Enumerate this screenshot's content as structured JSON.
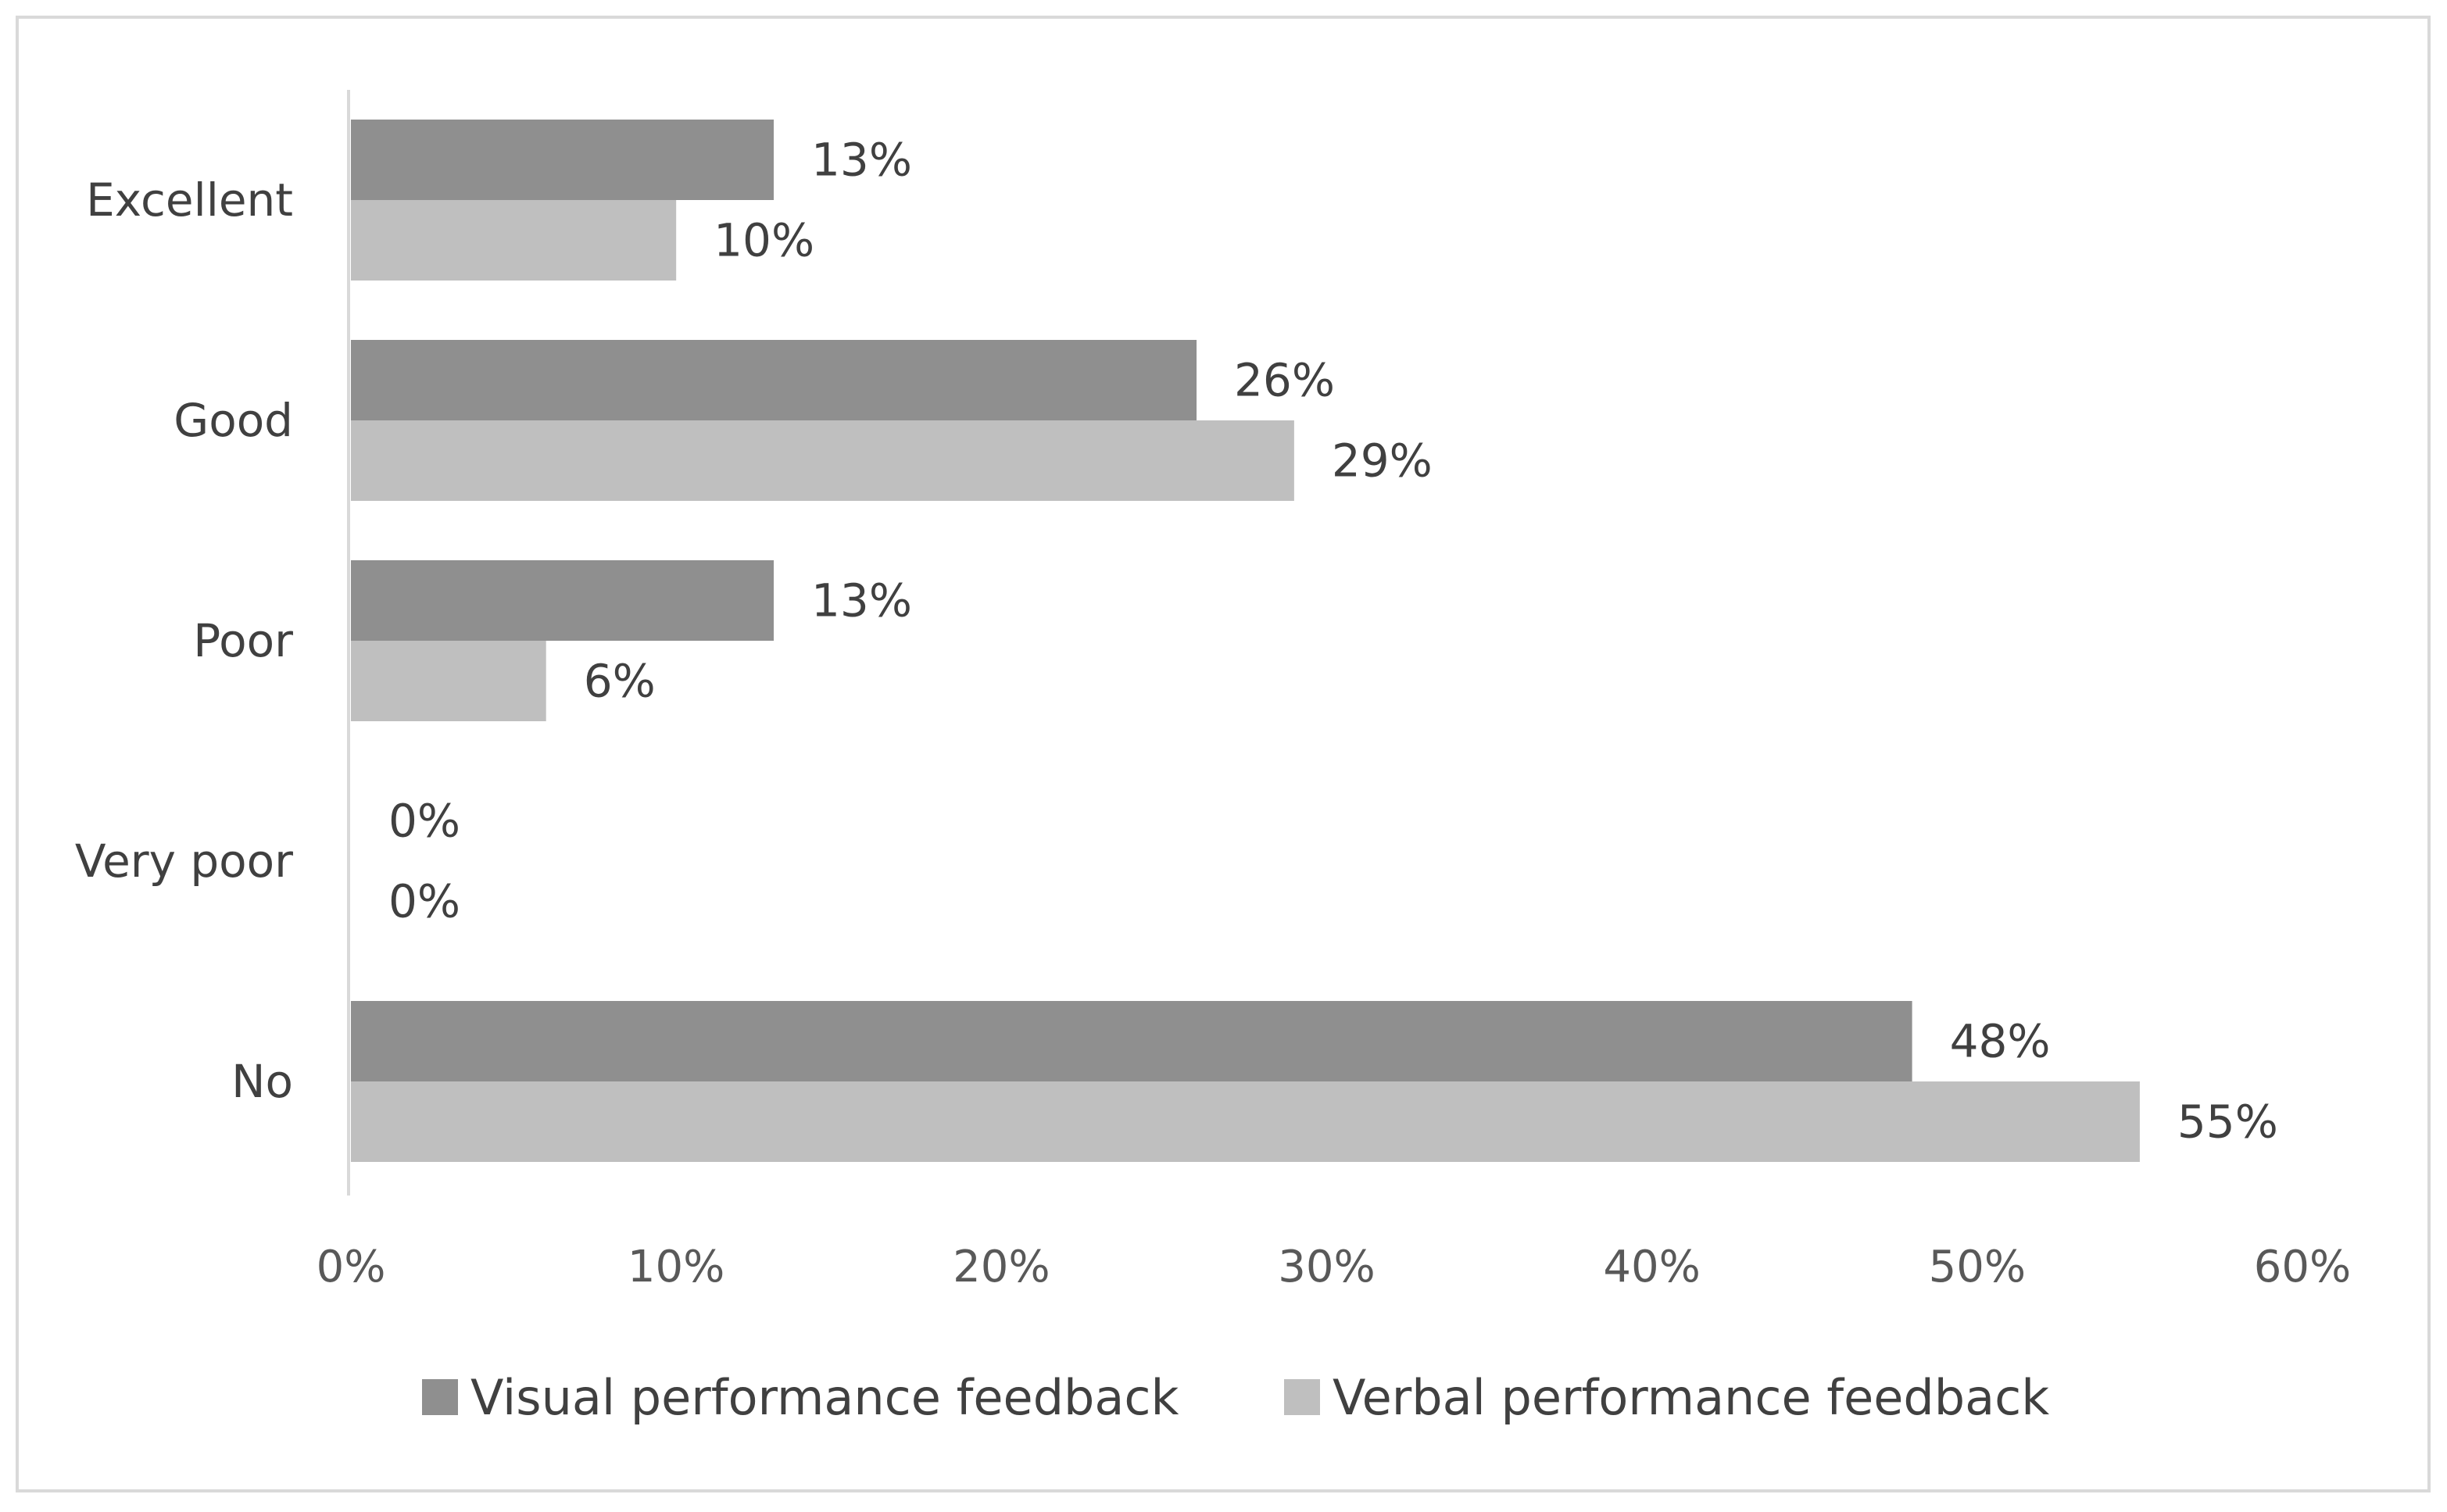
{
  "chart_data": {
    "type": "bar",
    "orientation": "horizontal",
    "title": "",
    "xlabel": "",
    "ylabel": "",
    "categories": [
      "Excellent",
      "Good",
      "Poor",
      "Very poor",
      "No"
    ],
    "xlim": [
      0,
      60
    ],
    "x_ticks": [
      "0%",
      "10%",
      "20%",
      "30%",
      "40%",
      "50%",
      "60%"
    ],
    "grid": false,
    "legend_position": "bottom",
    "series": [
      {
        "name": "Visual performance feedback",
        "color": "#8f8f8f",
        "values": [
          13,
          26,
          13,
          0,
          48
        ],
        "labels": [
          "13%",
          "26%",
          "13%",
          "0%",
          "48%"
        ]
      },
      {
        "name": "Verbal performance feedback",
        "color": "#bfbfbf",
        "values": [
          10,
          29,
          6,
          0,
          55
        ],
        "labels": [
          "10%",
          "29%",
          "6%",
          "0%",
          "55%"
        ]
      }
    ],
    "frame_color": "#d9d9d9",
    "axis_color": "#d9d9d9"
  }
}
